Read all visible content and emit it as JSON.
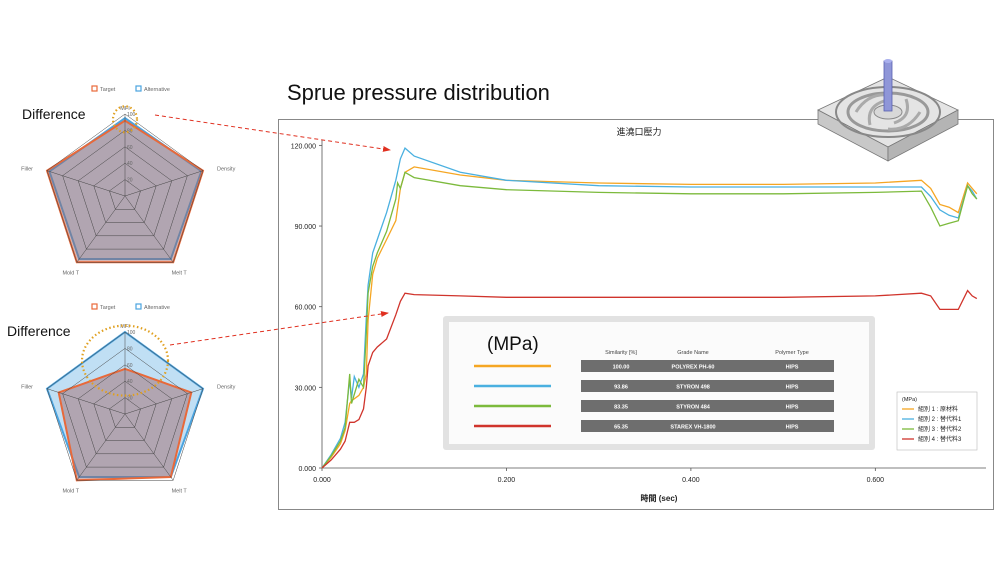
{
  "slide": {
    "title": "Sprue pressure distribution",
    "difference_label_1": "Difference",
    "difference_label_2": "Difference"
  },
  "chart_data": [
    {
      "type": "line",
      "title": "進澆口壓力",
      "xlabel": "時間 (sec)",
      "ylabel": "",
      "unit_label": "(MPa)",
      "xlim": [
        0.0,
        0.72
      ],
      "ylim": [
        0.0,
        122.0
      ],
      "x_ticks": [
        0.0,
        0.2,
        0.4,
        0.6
      ],
      "x_tick_labels": [
        "0.000",
        "0.200",
        "0.400",
        "0.600"
      ],
      "y_ticks": [
        0.0,
        30.0,
        60.0,
        90.0,
        120.0
      ],
      "y_tick_labels": [
        "0.000",
        "30.000",
        "60.000",
        "90.000",
        "120.000"
      ],
      "legend_title": "(MPa)",
      "legend_position": "bottom-right",
      "grid": false,
      "series": [
        {
          "name": "組別 1 : 原材料",
          "color": "#f5a623",
          "points": [
            [
              0,
              0
            ],
            [
              0.01,
              4
            ],
            [
              0.02,
              9
            ],
            [
              0.025,
              14
            ],
            [
              0.03,
              24
            ],
            [
              0.032,
              25
            ],
            [
              0.04,
              27
            ],
            [
              0.045,
              30
            ],
            [
              0.048,
              35
            ],
            [
              0.05,
              55
            ],
            [
              0.055,
              72
            ],
            [
              0.06,
              78
            ],
            [
              0.07,
              85
            ],
            [
              0.08,
              92
            ],
            [
              0.085,
              104
            ],
            [
              0.09,
              110
            ],
            [
              0.1,
              112
            ],
            [
              0.15,
              109
            ],
            [
              0.2,
              107
            ],
            [
              0.3,
              106
            ],
            [
              0.4,
              105.5
            ],
            [
              0.5,
              105.5
            ],
            [
              0.6,
              106
            ],
            [
              0.65,
              107
            ],
            [
              0.66,
              104
            ],
            [
              0.67,
              98
            ],
            [
              0.68,
              97
            ],
            [
              0.69,
              95
            ],
            [
              0.7,
              106
            ],
            [
              0.705,
              104
            ],
            [
              0.71,
              102
            ]
          ]
        },
        {
          "name": "組別 2 : 替代料1",
          "color": "#4ab0e0",
          "points": [
            [
              0,
              0
            ],
            [
              0.01,
              5
            ],
            [
              0.02,
              11
            ],
            [
              0.025,
              17
            ],
            [
              0.03,
              33
            ],
            [
              0.032,
              26
            ],
            [
              0.035,
              34
            ],
            [
              0.04,
              30
            ],
            [
              0.045,
              35
            ],
            [
              0.048,
              56
            ],
            [
              0.05,
              68
            ],
            [
              0.055,
              80
            ],
            [
              0.06,
              85
            ],
            [
              0.07,
              95
            ],
            [
              0.08,
              107
            ],
            [
              0.085,
              115
            ],
            [
              0.09,
              119
            ],
            [
              0.1,
              116
            ],
            [
              0.15,
              110
            ],
            [
              0.2,
              107
            ],
            [
              0.3,
              105
            ],
            [
              0.4,
              104.5
            ],
            [
              0.5,
              104.5
            ],
            [
              0.6,
              104.5
            ],
            [
              0.65,
              104.5
            ],
            [
              0.66,
              101
            ],
            [
              0.67,
              96
            ],
            [
              0.68,
              94
            ],
            [
              0.69,
              93
            ],
            [
              0.7,
              105
            ],
            [
              0.705,
              103
            ],
            [
              0.71,
              100
            ]
          ]
        },
        {
          "name": "組別 3 : 替代料2",
          "color": "#7cba3c",
          "points": [
            [
              0,
              0
            ],
            [
              0.01,
              4.5
            ],
            [
              0.02,
              10
            ],
            [
              0.025,
              15
            ],
            [
              0.03,
              35
            ],
            [
              0.032,
              24
            ],
            [
              0.04,
              33
            ],
            [
              0.045,
              30
            ],
            [
              0.048,
              50
            ],
            [
              0.05,
              65
            ],
            [
              0.055,
              75
            ],
            [
              0.06,
              80
            ],
            [
              0.07,
              88
            ],
            [
              0.08,
              100
            ],
            [
              0.082,
              106
            ],
            [
              0.085,
              104
            ],
            [
              0.09,
              110
            ],
            [
              0.1,
              108
            ],
            [
              0.15,
              105
            ],
            [
              0.2,
              103.5
            ],
            [
              0.3,
              102.5
            ],
            [
              0.4,
              102
            ],
            [
              0.5,
              102
            ],
            [
              0.6,
              102.5
            ],
            [
              0.65,
              103
            ],
            [
              0.66,
              97
            ],
            [
              0.67,
              90
            ],
            [
              0.68,
              91
            ],
            [
              0.69,
              92
            ],
            [
              0.7,
              105
            ],
            [
              0.705,
              102
            ],
            [
              0.71,
              100
            ]
          ]
        },
        {
          "name": "組別 4 : 替代料3",
          "color": "#d0342c",
          "points": [
            [
              0,
              0
            ],
            [
              0.01,
              3
            ],
            [
              0.02,
              7
            ],
            [
              0.025,
              10
            ],
            [
              0.03,
              17
            ],
            [
              0.035,
              17
            ],
            [
              0.04,
              18
            ],
            [
              0.045,
              22
            ],
            [
              0.048,
              30
            ],
            [
              0.05,
              38
            ],
            [
              0.055,
              43
            ],
            [
              0.06,
              45
            ],
            [
              0.07,
              48
            ],
            [
              0.08,
              57
            ],
            [
              0.085,
              62
            ],
            [
              0.09,
              65
            ],
            [
              0.1,
              64.5
            ],
            [
              0.15,
              64
            ],
            [
              0.2,
              63.5
            ],
            [
              0.3,
              63.5
            ],
            [
              0.4,
              63.5
            ],
            [
              0.5,
              63.5
            ],
            [
              0.6,
              64
            ],
            [
              0.65,
              65
            ],
            [
              0.66,
              64
            ],
            [
              0.67,
              59
            ],
            [
              0.68,
              59
            ],
            [
              0.69,
              59
            ],
            [
              0.7,
              66
            ],
            [
              0.705,
              64
            ],
            [
              0.71,
              63
            ]
          ]
        }
      ]
    },
    {
      "type": "radar",
      "axes": [
        "MFI",
        "Density",
        "Melt T",
        "Mold T",
        "Filler"
      ],
      "ticks": [
        20,
        40,
        60,
        80,
        100
      ],
      "rmax": 100,
      "legend": [
        "Target",
        "Alternative"
      ],
      "legend_position": "top",
      "series": [
        {
          "name": "Target",
          "color": "#e8693a",
          "values": [
            92,
            100,
            100,
            100,
            100
          ]
        },
        {
          "name": "Alternative",
          "color": "#4aa3df",
          "values": [
            95,
            98,
            95,
            95,
            97
          ]
        }
      ]
    },
    {
      "type": "radar",
      "axes": [
        "MFI",
        "Density",
        "Melt T",
        "Mold T",
        "Filler"
      ],
      "ticks": [
        20,
        40,
        60,
        80,
        100
      ],
      "rmax": 100,
      "legend": [
        "Target",
        "Alternative"
      ],
      "legend_position": "top",
      "series": [
        {
          "name": "Target",
          "color": "#e8693a",
          "values": [
            55,
            85,
            95,
            100,
            85
          ]
        },
        {
          "name": "Alternative",
          "color": "#4aa3df",
          "values": [
            100,
            100,
            95,
            95,
            100
          ]
        }
      ]
    }
  ],
  "similarity_table": {
    "unit_label": "(MPa)",
    "headers": [
      "Similarity [%]",
      "Grade Name",
      "Polymer Type"
    ],
    "rows": [
      {
        "color": "#f5a623",
        "cells": [
          "100.00",
          "POLYREX PH-60",
          "HIPS"
        ]
      },
      {
        "color": "#4ab0e0",
        "cells": [
          "93.86",
          "STYRON 498",
          "HIPS"
        ]
      },
      {
        "color": "#7cba3c",
        "cells": [
          "83.35",
          "STYRON 484",
          "HIPS"
        ]
      },
      {
        "color": "#d0342c",
        "cells": [
          "65.35",
          "STAREX VH-1800",
          "HIPS"
        ]
      }
    ]
  },
  "annotation_color": "#e0a020",
  "arrow_color": "#e03020"
}
